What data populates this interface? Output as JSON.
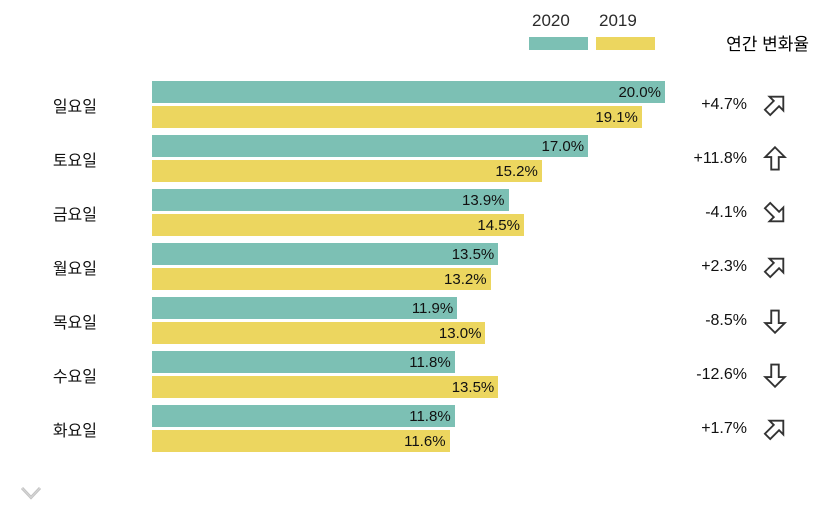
{
  "legend": {
    "items": [
      {
        "label": "2020",
        "color": "#7cc0b4"
      },
      {
        "label": "2019",
        "color": "#ecd65f"
      }
    ]
  },
  "change_header": "연간 변화율",
  "chart_data": {
    "type": "bar",
    "orientation": "horizontal",
    "title": "",
    "categories": [
      "일요일",
      "토요일",
      "금요일",
      "월요일",
      "목요일",
      "수요일",
      "화요일"
    ],
    "series": [
      {
        "name": "2020",
        "color": "#7cc0b4",
        "values": [
          20.0,
          17.0,
          13.9,
          13.5,
          11.9,
          11.8,
          11.8
        ]
      },
      {
        "name": "2019",
        "color": "#ecd65f",
        "values": [
          19.1,
          15.2,
          14.5,
          13.2,
          13.0,
          13.5,
          11.6
        ]
      }
    ],
    "value_suffix": "%",
    "xlim": [
      0,
      20
    ],
    "grid": false,
    "legend_position": "top-right",
    "annotations_header": "연간 변화율",
    "annotations": [
      "+4.7%",
      "+11.8%",
      "-4.1%",
      "+2.3%",
      "-8.5%",
      "-12.6%",
      "+1.7%"
    ]
  },
  "rows": [
    {
      "day": "일요일",
      "v2020": "20.0%",
      "v2019": "19.1%",
      "change": "+4.7%",
      "trend": "up-right"
    },
    {
      "day": "토요일",
      "v2020": "17.0%",
      "v2019": "15.2%",
      "change": "+11.8%",
      "trend": "up"
    },
    {
      "day": "금요일",
      "v2020": "13.9%",
      "v2019": "14.5%",
      "change": "-4.1%",
      "trend": "down-right"
    },
    {
      "day": "월요일",
      "v2020": "13.5%",
      "v2019": "13.2%",
      "change": "+2.3%",
      "trend": "up-right"
    },
    {
      "day": "목요일",
      "v2020": "11.9%",
      "v2019": "13.0%",
      "change": "-8.5%",
      "trend": "down"
    },
    {
      "day": "수요일",
      "v2020": "11.8%",
      "v2019": "13.5%",
      "change": "-12.6%",
      "trend": "down"
    },
    {
      "day": "화요일",
      "v2020": "11.8%",
      "v2019": "11.6%",
      "change": "+1.7%",
      "trend": "up-right"
    }
  ],
  "icons": {
    "trend_arrow": "outline-arrow-icon",
    "watermark": "double-chevron-down-icon"
  },
  "colors": {
    "bar_2020": "#7cc0b4",
    "bar_2019": "#ecd65f",
    "arrow_stroke": "#333333",
    "watermark_gray": "#c4c4c4",
    "text": "#111111"
  }
}
